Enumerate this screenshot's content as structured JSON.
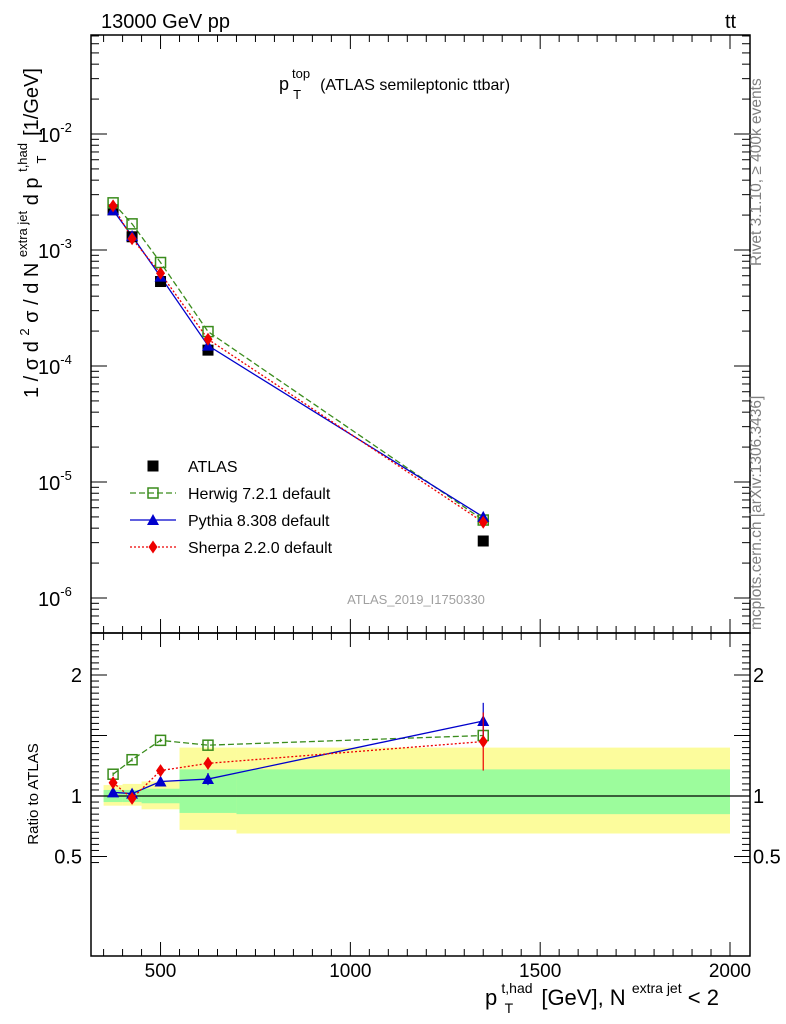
{
  "header": {
    "energy_label": "13000 GeV pp",
    "process_base": "tt",
    "process_bar": "¯"
  },
  "side_notes": {
    "rivet": "Rivet 3.1.10, ≥ 400k events",
    "source": "mcplots.cern.ch [arXiv:1306.3436]"
  },
  "main_plot": {
    "title_base": "p",
    "title_sup": "top",
    "title_sub": "T",
    "title_rest": "(ATLAS semileptonic ttbar)",
    "analysis_id": "ATLAS_2019_I1750330",
    "ylabel_prefix": "1 / σ d",
    "ylabel_sup2": "2",
    "ylabel_mid": "σ /  d N",
    "ylabel_sup_extra": "extra jet",
    "ylabel_d": " d p",
    "ylabel_sup_thad": "t,had",
    "ylabel_sub_T": "T",
    "ylabel_unit": " [1/GeV]",
    "y_tick_labels": [
      {
        "base": "10",
        "exp": "-2",
        "value": 0.01
      },
      {
        "base": "10",
        "exp": "-3",
        "value": 0.001
      },
      {
        "base": "10",
        "exp": "-4",
        "value": 0.0001
      },
      {
        "base": "10",
        "exp": "-5",
        "value": 1e-05
      },
      {
        "base": "10",
        "exp": "-6",
        "value": 1e-06
      }
    ]
  },
  "ratio_plot": {
    "ylabel": "Ratio to ATLAS",
    "y_tick_labels": [
      {
        "label": "2",
        "value": 2.0
      },
      {
        "label": "1",
        "value": 1.0
      },
      {
        "label": "0.5",
        "value": 0.5
      }
    ]
  },
  "x_axis": {
    "tick_labels": [
      {
        "label": "500",
        "value": 500
      },
      {
        "label": "1000",
        "value": 1000
      },
      {
        "label": "1500",
        "value": 1500
      },
      {
        "label": "2000",
        "value": 2000
      }
    ],
    "label_p": "p",
    "label_sup_thad": "t,had",
    "label_sub_T": "T",
    "label_mid": " [GeV], N",
    "label_sup_extra": "extra jet",
    "label_end": " < 2"
  },
  "chart_data": [
    {
      "type": "scatter",
      "title": "p_T^top (ATLAS semileptonic ttbar)",
      "xlabel": "p_T^{t,had} [GeV], N^{extra jet} < 2",
      "ylabel": "1 / σ d²σ / d N^{extra jet} d p_T^{t,had} [1/GeV]",
      "yscale": "log",
      "xlim": [
        330,
        2000
      ],
      "ylim": [
        4e-07,
        0.09
      ],
      "legend_position": "lower-left",
      "series": [
        {
          "name": "ATLAS",
          "color": "#000000",
          "marker": "square",
          "line": "none",
          "x": [
            375,
            425,
            500,
            625,
            1350
          ],
          "y": [
            0.00222,
            0.0013,
            0.000535,
            0.000137,
            3.1e-06
          ]
        },
        {
          "name": "Herwig 7.2.1 default",
          "color": "#3a8c1c",
          "marker": "open-square",
          "line": "dashed",
          "x": [
            375,
            425,
            500,
            625,
            1350
          ],
          "y": [
            0.00255,
            0.00168,
            0.00078,
            0.000198,
            4.7e-06
          ]
        },
        {
          "name": "Pythia 8.308 default",
          "color": "#0000cc",
          "marker": "triangle",
          "line": "solid",
          "x": [
            375,
            425,
            500,
            625,
            1350
          ],
          "y": [
            0.0022,
            0.00132,
            0.00059,
            0.00015,
            5e-06
          ]
        },
        {
          "name": "Sherpa 2.2.0 default",
          "color": "#ee0000",
          "marker": "diamond",
          "line": "dotted",
          "x": [
            375,
            425,
            500,
            625,
            1350
          ],
          "y": [
            0.0024,
            0.00125,
            0.00063,
            0.00017,
            4.5e-06
          ]
        }
      ]
    },
    {
      "type": "scatter",
      "ylabel": "Ratio to ATLAS",
      "xlim": [
        330,
        2000
      ],
      "ylim": [
        0.4,
        2.35
      ],
      "reference_line": 1.0,
      "uncertainty_bands": [
        {
          "x_low": 350,
          "x_high": 400,
          "stat_low": 0.95,
          "stat_high": 1.05,
          "total_low": 0.92,
          "total_high": 1.09
        },
        {
          "x_low": 400,
          "x_high": 450,
          "stat_low": 0.95,
          "stat_high": 1.05,
          "total_low": 0.92,
          "total_high": 1.1
        },
        {
          "x_low": 450,
          "x_high": 550,
          "stat_low": 0.94,
          "stat_high": 1.06,
          "total_low": 0.89,
          "total_high": 1.12
        },
        {
          "x_low": 550,
          "x_high": 700,
          "stat_low": 0.86,
          "stat_high": 1.22,
          "total_low": 0.72,
          "total_high": 1.4
        },
        {
          "x_low": 700,
          "x_high": 2000,
          "stat_low": 0.85,
          "stat_high": 1.22,
          "total_low": 0.69,
          "total_high": 1.4
        }
      ],
      "band_colors": {
        "stat": "#9cfc9c",
        "total": "#fcfc9c"
      },
      "series": [
        {
          "name": "Herwig 7.2.1 default",
          "color": "#3a8c1c",
          "marker": "open-square",
          "line": "dashed",
          "x": [
            375,
            425,
            500,
            625,
            1350
          ],
          "y": [
            1.18,
            1.3,
            1.46,
            1.42,
            1.5
          ],
          "yerr": [
            0.015,
            0.015,
            0.015,
            0.04,
            0.04
          ]
        },
        {
          "name": "Pythia 8.308 default",
          "color": "#0000cc",
          "marker": "triangle",
          "line": "solid",
          "x": [
            375,
            425,
            500,
            625,
            1350
          ],
          "y": [
            1.03,
            1.02,
            1.12,
            1.14,
            1.62
          ],
          "yerr": [
            0.015,
            0.02,
            0.02,
            0.05,
            0.15
          ]
        },
        {
          "name": "Sherpa 2.2.0 default",
          "color": "#ee0000",
          "marker": "diamond",
          "line": "dotted",
          "x": [
            375,
            425,
            500,
            625,
            1350
          ],
          "y": [
            1.11,
            0.98,
            1.21,
            1.27,
            1.45
          ],
          "yerr": [
            0.02,
            0.02,
            0.02,
            0.05,
            0.24
          ]
        }
      ]
    }
  ]
}
